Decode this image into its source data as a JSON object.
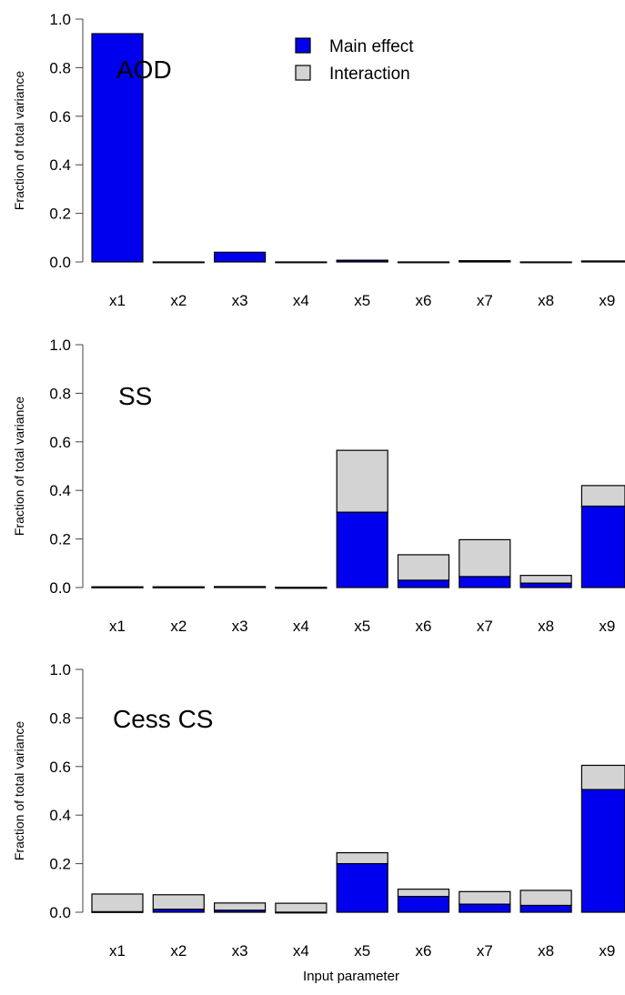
{
  "chart_data": [
    {
      "type": "bar",
      "stacked": true,
      "title": "AOD",
      "ylabel": "Fraction of total variance",
      "xlabel": "",
      "ylim": [
        0,
        1.0
      ],
      "yticks": [
        "0.0",
        "0.2",
        "0.4",
        "0.6",
        "0.8",
        "1.0"
      ],
      "categories": [
        "x1",
        "x2",
        "x3",
        "x4",
        "x5",
        "x6",
        "x7",
        "x8",
        "x9"
      ],
      "series": [
        {
          "name": "Main effect",
          "values": [
            0.94,
            0.0,
            0.04,
            0.0,
            0.006,
            0.0,
            0.004,
            0.0,
            0.003
          ]
        },
        {
          "name": "Interaction",
          "values": [
            0.0,
            0.0,
            0.0,
            0.0,
            0.001,
            0.0,
            0.001,
            0.0,
            0.001
          ]
        }
      ]
    },
    {
      "type": "bar",
      "stacked": true,
      "title": "SS",
      "ylabel": "Fraction of total variance",
      "xlabel": "",
      "ylim": [
        0,
        1.0
      ],
      "yticks": [
        "0.0",
        "0.2",
        "0.4",
        "0.6",
        "0.8",
        "1.0"
      ],
      "categories": [
        "x1",
        "x2",
        "x3",
        "x4",
        "x5",
        "x6",
        "x7",
        "x8",
        "x9"
      ],
      "series": [
        {
          "name": "Main effect",
          "values": [
            0.002,
            0.002,
            0.003,
            0.0,
            0.31,
            0.03,
            0.045,
            0.018,
            0.335
          ]
        },
        {
          "name": "Interaction",
          "values": [
            0.001,
            0.001,
            0.001,
            0.001,
            0.255,
            0.105,
            0.152,
            0.032,
            0.085
          ]
        }
      ]
    },
    {
      "type": "bar",
      "stacked": true,
      "title": "Cess CS",
      "ylabel": "Fraction of total variance",
      "xlabel": "Input parameter",
      "ylim": [
        0,
        1.0
      ],
      "yticks": [
        "0.0",
        "0.2",
        "0.4",
        "0.6",
        "0.8",
        "1.0"
      ],
      "categories": [
        "x1",
        "x2",
        "x3",
        "x4",
        "x5",
        "x6",
        "x7",
        "x8",
        "x9"
      ],
      "series": [
        {
          "name": "Main effect",
          "values": [
            0.002,
            0.012,
            0.008,
            0.0,
            0.2,
            0.065,
            0.033,
            0.028,
            0.505
          ]
        },
        {
          "name": "Interaction",
          "values": [
            0.073,
            0.06,
            0.03,
            0.037,
            0.045,
            0.03,
            0.052,
            0.062,
            0.1
          ]
        }
      ]
    }
  ],
  "legend": {
    "placement": "top-center",
    "items": [
      {
        "label": "Main effect",
        "color": "#0000ee"
      },
      {
        "label": "Interaction",
        "color": "#d3d3d3"
      }
    ]
  },
  "xlabel": "Input parameter",
  "colors": {
    "main": "#0000ee",
    "interaction": "#d3d3d3",
    "axis": "#444444"
  }
}
